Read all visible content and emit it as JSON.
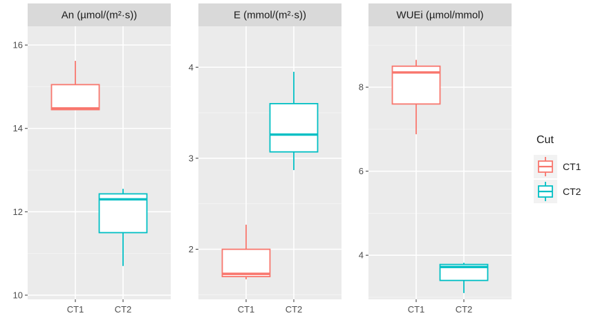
{
  "chart_data": {
    "type": "boxplot",
    "facets": [
      {
        "title": "An (µmol/(m²·s))",
        "ylim": [
          9.9,
          16.45
        ],
        "yticks": [
          10,
          12,
          14,
          16
        ],
        "categories": [
          "CT1",
          "CT2"
        ],
        "boxes": [
          {
            "group": "CT1",
            "min": 14.45,
            "q1": 14.45,
            "median": 14.48,
            "q3": 15.05,
            "max": 15.62
          },
          {
            "group": "CT2",
            "min": 10.7,
            "q1": 11.5,
            "median": 12.3,
            "q3": 12.43,
            "max": 12.55
          }
        ]
      },
      {
        "title": "E (mmol/(m²·s))",
        "ylim": [
          1.45,
          4.45
        ],
        "yticks": [
          2,
          3,
          4
        ],
        "categories": [
          "CT1",
          "CT2"
        ],
        "boxes": [
          {
            "group": "CT1",
            "min": 1.67,
            "q1": 1.7,
            "median": 1.73,
            "q3": 2.0,
            "max": 2.27
          },
          {
            "group": "CT2",
            "min": 2.87,
            "q1": 3.07,
            "median": 3.26,
            "q3": 3.6,
            "max": 3.95
          }
        ]
      },
      {
        "title": "WUEi (µmol/mmol)",
        "ylim": [
          2.95,
          9.45
        ],
        "yticks": [
          4,
          6,
          8
        ],
        "categories": [
          "CT1",
          "CT2"
        ],
        "boxes": [
          {
            "group": "CT1",
            "min": 6.88,
            "q1": 7.6,
            "median": 8.35,
            "q3": 8.5,
            "max": 8.65
          },
          {
            "group": "CT2",
            "min": 3.1,
            "q1": 3.4,
            "median": 3.72,
            "q3": 3.78,
            "max": 3.82
          }
        ]
      }
    ],
    "legend": {
      "title": "Cut",
      "position": "right",
      "entries": [
        {
          "label": "CT1",
          "color": "#F8766D"
        },
        {
          "label": "CT2",
          "color": "#00BFC4"
        }
      ]
    },
    "grid": true,
    "colors": {
      "panel": "#ebebeb",
      "strip": "#d9d9d9",
      "grid_major": "#ffffff",
      "grid_minor": "#f5f5f5",
      "axis_text": "#4d4d4d"
    }
  }
}
